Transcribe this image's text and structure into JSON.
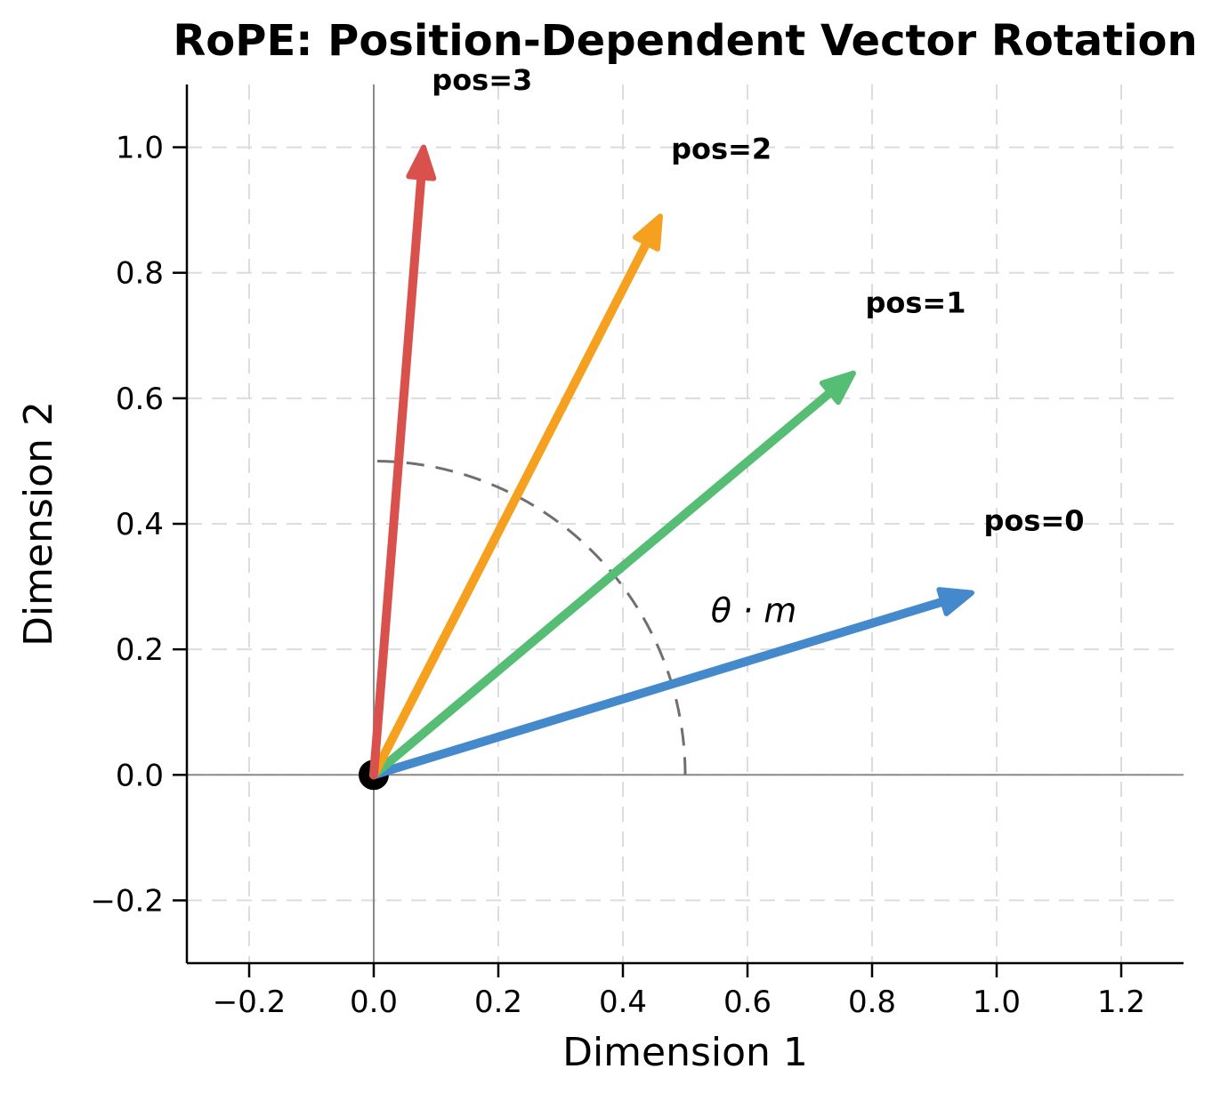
{
  "chart_data": {
    "type": "vector (rotating quiver arrows from origin)",
    "title": "RoPE: Position-Dependent Vector Rotation",
    "xlabel": "Dimension 1",
    "ylabel": "Dimension 2",
    "xlim": [
      -0.3,
      1.3
    ],
    "ylim": [
      -0.3,
      1.1
    ],
    "xticks": [
      -0.2,
      0.0,
      0.2,
      0.4,
      0.6,
      0.8,
      1.0,
      1.2
    ],
    "xtick_labels": [
      "−0.2",
      "0.0",
      "0.2",
      "0.4",
      "0.6",
      "0.8",
      "1.0",
      "1.2"
    ],
    "yticks": [
      -0.2,
      0.0,
      0.2,
      0.4,
      0.6,
      0.8,
      1.0
    ],
    "ytick_labels": [
      "−0.2",
      "0.0",
      "0.2",
      "0.4",
      "0.6",
      "0.8",
      "1.0"
    ],
    "grid": true,
    "grid_style": "dashed",
    "legend": "none (arrows labeled inline)",
    "origin_marker": {
      "x": 0.0,
      "y": 0.0,
      "color": "#000000"
    },
    "vectors": [
      {
        "pos": 0,
        "label": "pos=0",
        "x": 0.96,
        "y": 0.29,
        "angle_deg": 16.7,
        "color": "#4589CD",
        "label_x": 1.06,
        "label_y": 0.405
      },
      {
        "pos": 1,
        "label": "pos=1",
        "x": 0.77,
        "y": 0.64,
        "angle_deg": 39.6,
        "color": "#55BD74",
        "label_x": 0.87,
        "label_y": 0.752
      },
      {
        "pos": 2,
        "label": "pos=2",
        "x": 0.46,
        "y": 0.89,
        "angle_deg": 62.5,
        "color": "#F5A01F",
        "label_x": 0.558,
        "label_y": 0.997
      },
      {
        "pos": 3,
        "label": "pos=3",
        "x": 0.08,
        "y": 1.0,
        "angle_deg": 85.4,
        "color": "#D8514D",
        "label_x": 0.174,
        "label_y": 1.107
      }
    ],
    "rotation_per_position_rad": 0.4,
    "angle_annotation": {
      "text": "θ · m",
      "x": 0.61,
      "y": 0.262,
      "arc_radius": 0.5,
      "arc_from_deg": 0,
      "arc_to_deg": 90
    },
    "colors": {
      "grid": "#dcdcdc",
      "zero_axis_lines": "#8a8a8a",
      "angle_arc": "#6f6f6f",
      "origin_dot": "#000000",
      "pos0": "#4589CD",
      "pos1": "#55BD74",
      "pos2": "#F5A01F",
      "pos3": "#D8514D"
    }
  }
}
